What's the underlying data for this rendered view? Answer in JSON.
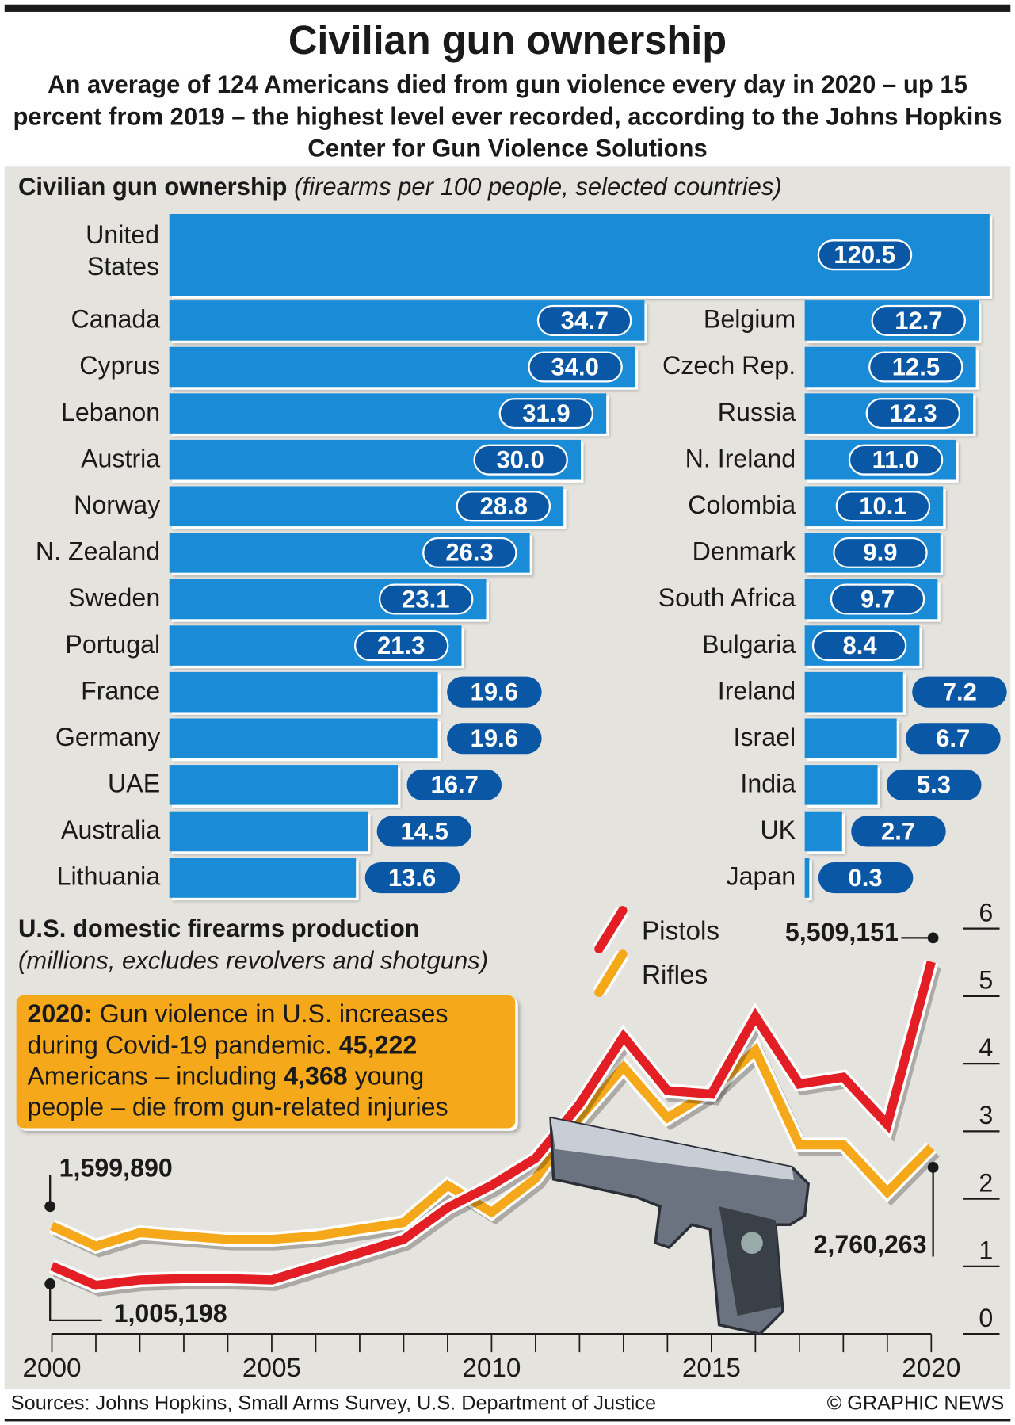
{
  "title": "Civilian gun ownership",
  "subtitle": "An average of 124 Americans died from gun violence every day in 2020 – up 15 percent from 2019 – the highest level ever recorded, according to the Johns Hopkins Center for Gun Violence Solutions",
  "colors": {
    "bar": "#1a8bd6",
    "pill": "#0a57a6",
    "pistols": "#e31e24",
    "rifles": "#f6a81b",
    "panel": "#e5e3de",
    "note": "#f6a81b"
  },
  "chart_data": [
    {
      "type": "bar",
      "title": "Civilian gun ownership",
      "subtitle": "(firearms per 100 people, selected countries)",
      "categories": [
        "United States",
        "Canada",
        "Cyprus",
        "Lebanon",
        "Austria",
        "Norway",
        "N. Zealand",
        "Sweden",
        "Portugal",
        "France",
        "Germany",
        "UAE",
        "Australia",
        "Lithuania",
        "Belgium",
        "Czech Rep.",
        "Russia",
        "N. Ireland",
        "Colombia",
        "Denmark",
        "South Africa",
        "Bulgaria",
        "Ireland",
        "Israel",
        "India",
        "UK",
        "Japan"
      ],
      "values": [
        120.5,
        34.7,
        34.0,
        31.9,
        30.0,
        28.8,
        26.3,
        23.1,
        21.3,
        19.6,
        19.6,
        16.7,
        14.5,
        13.6,
        12.7,
        12.5,
        12.3,
        11.0,
        10.1,
        9.9,
        9.7,
        8.4,
        7.2,
        6.7,
        5.3,
        2.7,
        0.3
      ],
      "value_labels": [
        "120.5",
        "34.7",
        "34.0",
        "31.9",
        "30.0",
        "28.8",
        "26.3",
        "23.1",
        "21.3",
        "19.6",
        "19.6",
        "16.7",
        "14.5",
        "13.6",
        "12.7",
        "12.5",
        "12.3",
        "11.0",
        "10.1",
        "9.9",
        "9.7",
        "8.4",
        "7.2",
        "6.7",
        "5.3",
        "2.7",
        "0.3"
      ],
      "orientation": "horizontal"
    },
    {
      "type": "line",
      "title": "U.S. domestic firearms production",
      "subtitle": "(millions, excludes revolvers and shotguns)",
      "x": [
        2000,
        2001,
        2002,
        2003,
        2004,
        2005,
        2006,
        2007,
        2008,
        2009,
        2010,
        2011,
        2012,
        2013,
        2014,
        2015,
        2016,
        2017,
        2018,
        2019,
        2020
      ],
      "xticks": [
        "2000",
        "2005",
        "2010",
        "2015",
        "2020"
      ],
      "yticks": [
        "0",
        "1",
        "2",
        "3",
        "4",
        "5",
        "6"
      ],
      "ylim": [
        0,
        6
      ],
      "legend": "top",
      "series": [
        {
          "name": "Pistols",
          "color": "#e31e24",
          "values": [
            1.005,
            0.72,
            0.8,
            0.82,
            0.82,
            0.8,
            1.0,
            1.2,
            1.4,
            1.87,
            2.2,
            2.6,
            3.4,
            4.4,
            3.6,
            3.55,
            4.7,
            3.7,
            3.8,
            3.1,
            5.509
          ]
        },
        {
          "name": "Rifles",
          "color": "#f6a81b",
          "values": [
            1.6,
            1.3,
            1.5,
            1.45,
            1.4,
            1.4,
            1.45,
            1.55,
            1.65,
            2.2,
            1.8,
            2.3,
            3.2,
            3.95,
            3.2,
            3.6,
            4.2,
            2.8,
            2.8,
            2.1,
            2.76
          ]
        }
      ],
      "annotations": [
        "1,599,890",
        "1,005,198",
        "5,509,151",
        "2,760,263"
      ]
    }
  ],
  "note": {
    "b1": "2020:",
    "t1": " Gun violence in U.S. increases during Covid-19 pandemic. ",
    "b2": "45,222",
    "t2": " Americans – including ",
    "b3": "4,368",
    "t3": " young people – die from gun-related injuries"
  },
  "footer": {
    "sources": "Sources: Johns Hopkins, Small Arms Survey, U.S. Department of Justice",
    "credit": "© GRAPHIC NEWS"
  }
}
